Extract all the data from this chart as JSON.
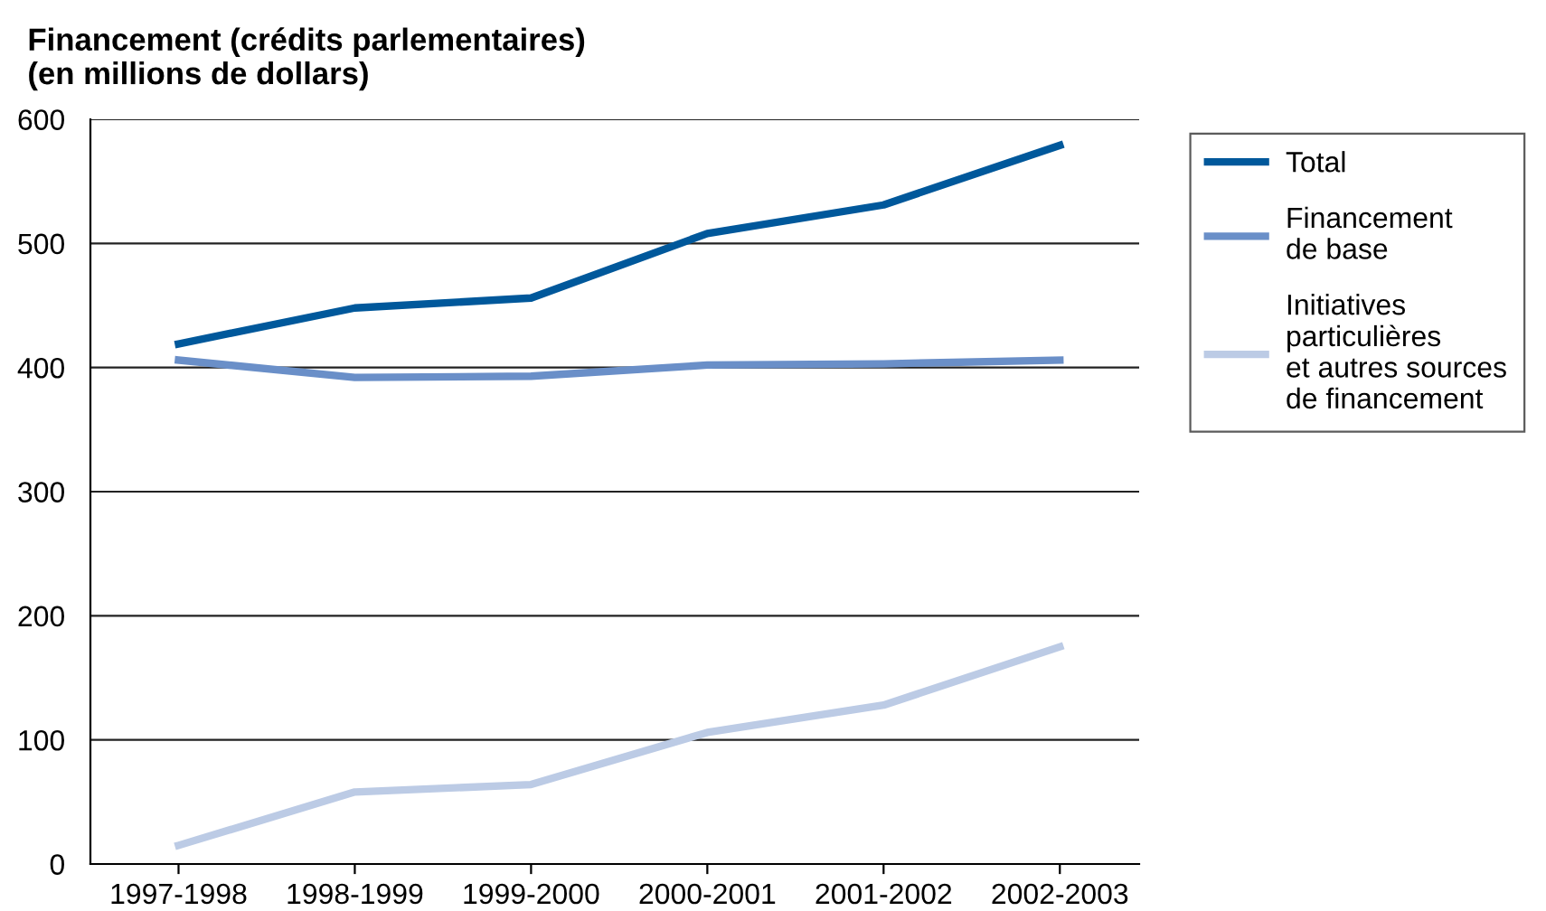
{
  "chart_data": {
    "type": "line",
    "title": "Financement (crédits parlementaires)\n(en millions de dollars)",
    "categories": [
      "1997-1998",
      "1998-1999",
      "1999-2000",
      "2000-2001",
      "2001-2002",
      "2002-2003"
    ],
    "series": [
      {
        "name": "Total",
        "color": "#00589b",
        "values": [
          419,
          448,
          456,
          508,
          531,
          579
        ]
      },
      {
        "name": "Financement\nde base",
        "color": "#6a8fc8",
        "values": [
          406,
          392,
          393,
          402,
          403,
          406
        ]
      },
      {
        "name": "Initiatives\nparticulières\net autres sources\nde financement",
        "color": "#bccbe5",
        "values": [
          15,
          58,
          64,
          106,
          128,
          175
        ]
      }
    ],
    "ylim": [
      0,
      600
    ],
    "yticks": [
      0,
      100,
      200,
      300,
      400,
      500,
      600
    ],
    "grid": "y",
    "legend": "right",
    "marker": "none",
    "line_style": "solid"
  }
}
